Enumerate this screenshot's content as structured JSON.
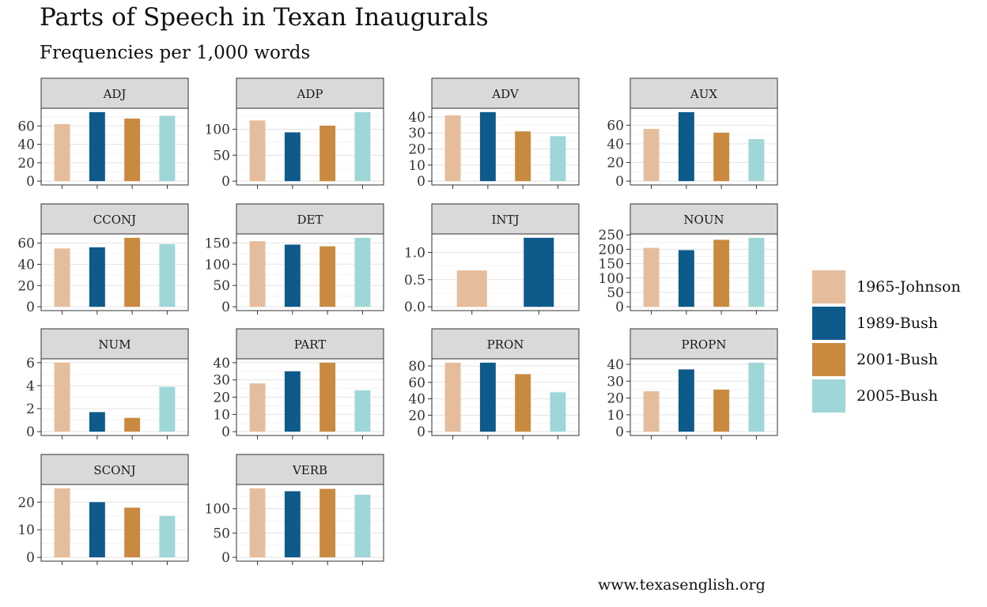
{
  "title": "Parts of Speech in Texan Inaugurals",
  "subtitle": "Frequencies per 1,000 words",
  "caption": "www.texasenglish.org",
  "colors": {
    "1965-Johnson": "#e6bd9c",
    "1989-Bush": "#0e5a8a",
    "2001-Bush": "#c98a3f",
    "2005-Bush": "#9fd6d8"
  },
  "chart_data": {
    "type": "bar",
    "legend_position": "right",
    "grid": true,
    "series_names": [
      "1965-Johnson",
      "1989-Bush",
      "2001-Bush",
      "2005-Bush"
    ],
    "panels": [
      {
        "label": "ADJ",
        "categories": [
          "1965-Johnson",
          "1989-Bush",
          "2001-Bush",
          "2005-Bush"
        ],
        "values": [
          62,
          75,
          68,
          71
        ],
        "ylim": [
          0,
          75
        ],
        "yticks": [
          0,
          20,
          40,
          60
        ]
      },
      {
        "label": "ADP",
        "categories": [
          "1965-Johnson",
          "1989-Bush",
          "2001-Bush",
          "2005-Bush"
        ],
        "values": [
          117,
          94,
          107,
          133
        ],
        "ylim": [
          0,
          133
        ],
        "yticks": [
          0,
          50,
          100
        ]
      },
      {
        "label": "ADV",
        "categories": [
          "1965-Johnson",
          "1989-Bush",
          "2001-Bush",
          "2005-Bush"
        ],
        "values": [
          41,
          43,
          31,
          28
        ],
        "ylim": [
          0,
          43
        ],
        "yticks": [
          0,
          10,
          20,
          30,
          40
        ]
      },
      {
        "label": "AUX",
        "categories": [
          "1965-Johnson",
          "1989-Bush",
          "2001-Bush",
          "2005-Bush"
        ],
        "values": [
          56,
          74,
          52,
          45
        ],
        "ylim": [
          0,
          74
        ],
        "yticks": [
          0,
          20,
          40,
          60
        ]
      },
      {
        "label": "CCONJ",
        "categories": [
          "1965-Johnson",
          "1989-Bush",
          "2001-Bush",
          "2005-Bush"
        ],
        "values": [
          55,
          56,
          65,
          59
        ],
        "ylim": [
          0,
          65
        ],
        "yticks": [
          0,
          20,
          40,
          60
        ]
      },
      {
        "label": "DET",
        "categories": [
          "1965-Johnson",
          "1989-Bush",
          "2001-Bush",
          "2005-Bush"
        ],
        "values": [
          154,
          146,
          142,
          162
        ],
        "ylim": [
          0,
          162
        ],
        "yticks": [
          0,
          50,
          100,
          150
        ]
      },
      {
        "label": "INTJ",
        "categories": [
          "1965-Johnson",
          "1989-Bush"
        ],
        "values": [
          0.67,
          1.27
        ],
        "ylim": [
          0,
          1.27
        ],
        "yticks": [
          0.0,
          0.5,
          1.0
        ],
        "tick_decimals": 1
      },
      {
        "label": "NOUN",
        "categories": [
          "1965-Johnson",
          "1989-Bush",
          "2001-Bush",
          "2005-Bush"
        ],
        "values": [
          205,
          197,
          233,
          240
        ],
        "ylim": [
          0,
          240
        ],
        "yticks": [
          0,
          50,
          100,
          150,
          200,
          250
        ]
      },
      {
        "label": "NUM",
        "categories": [
          "1965-Johnson",
          "1989-Bush",
          "2001-Bush",
          "2005-Bush"
        ],
        "values": [
          6.0,
          1.7,
          1.2,
          3.9
        ],
        "ylim": [
          0,
          6
        ],
        "yticks": [
          0,
          2,
          4,
          6
        ]
      },
      {
        "label": "PART",
        "categories": [
          "1965-Johnson",
          "1989-Bush",
          "2001-Bush",
          "2005-Bush"
        ],
        "values": [
          28,
          35,
          40,
          24
        ],
        "ylim": [
          0,
          40
        ],
        "yticks": [
          0,
          10,
          20,
          30,
          40
        ]
      },
      {
        "label": "PRON",
        "categories": [
          "1965-Johnson",
          "1989-Bush",
          "2001-Bush",
          "2005-Bush"
        ],
        "values": [
          84,
          84,
          70,
          48
        ],
        "ylim": [
          0,
          84
        ],
        "yticks": [
          0,
          20,
          40,
          60,
          80
        ]
      },
      {
        "label": "PROPN",
        "categories": [
          "1965-Johnson",
          "1989-Bush",
          "2001-Bush",
          "2005-Bush"
        ],
        "values": [
          24,
          37,
          25,
          41
        ],
        "ylim": [
          0,
          41
        ],
        "yticks": [
          0,
          10,
          20,
          30,
          40
        ]
      },
      {
        "label": "SCONJ",
        "categories": [
          "1965-Johnson",
          "1989-Bush",
          "2001-Bush",
          "2005-Bush"
        ],
        "values": [
          25,
          20,
          18,
          15
        ],
        "ylim": [
          0,
          25
        ],
        "yticks": [
          0,
          10,
          20
        ]
      },
      {
        "label": "VERB",
        "categories": [
          "1965-Johnson",
          "1989-Bush",
          "2001-Bush",
          "2005-Bush"
        ],
        "values": [
          142,
          136,
          141,
          129
        ],
        "ylim": [
          0,
          142
        ],
        "yticks": [
          0,
          50,
          100
        ]
      }
    ]
  }
}
